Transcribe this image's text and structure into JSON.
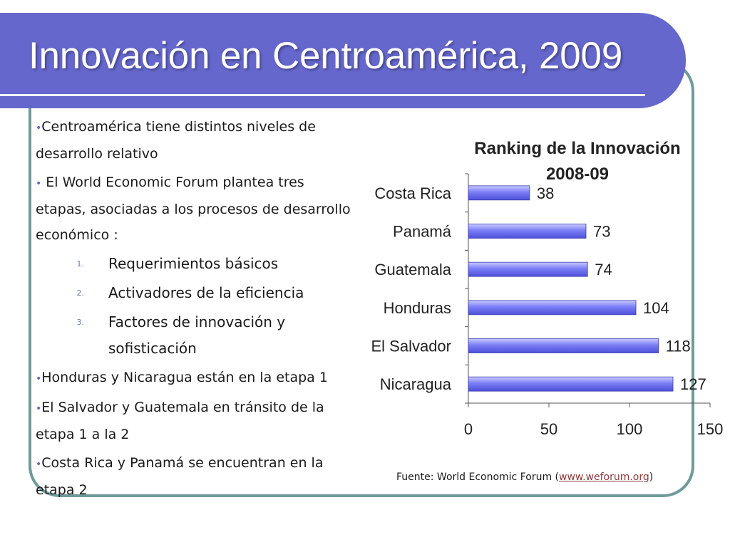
{
  "title": "Innovación en Centroamérica, 2009",
  "bullets": {
    "b1": "Centroamérica tiene distintos niveles de desarrollo relativo",
    "b2": " El World Economic Forum plantea tres etapas, asociadas a los procesos de desarrollo económico :",
    "stages": [
      {
        "n": "1.",
        "text": "Requerimientos básicos"
      },
      {
        "n": "2.",
        "text": "Activadores de la eficiencia"
      },
      {
        "n": "3.",
        "text": "Factores de innovación y sofisticación"
      }
    ],
    "b3": "Honduras y Nicaragua están en la etapa 1",
    "b4": "El Salvador y Guatemala en tránsito de la etapa 1 a la 2",
    "b5": "Costa Rica y Panamá se encuentran en la etapa 2"
  },
  "source": {
    "prefix": "Fuente: World Economic Forum (",
    "link": "www.weforum.org",
    "suffix": ")"
  },
  "colors": {
    "header": "#6567cd",
    "bar": "#6b6ef0",
    "frame": "#6f9a9a"
  },
  "chart_data": {
    "type": "bar",
    "orientation": "horizontal",
    "title": "Ranking de la Innovación 2008-09",
    "title_lines": [
      "Ranking de la Innovación",
      "2008-09"
    ],
    "categories": [
      "Costa Rica",
      "Panamá",
      "Guatemala",
      "Honduras",
      "El Salvador",
      "Nicaragua"
    ],
    "values": [
      38,
      73,
      74,
      104,
      118,
      127
    ],
    "xlim": [
      0,
      150
    ],
    "xticks": [
      0,
      50,
      100,
      150
    ],
    "grid": false,
    "data_labels": true
  }
}
